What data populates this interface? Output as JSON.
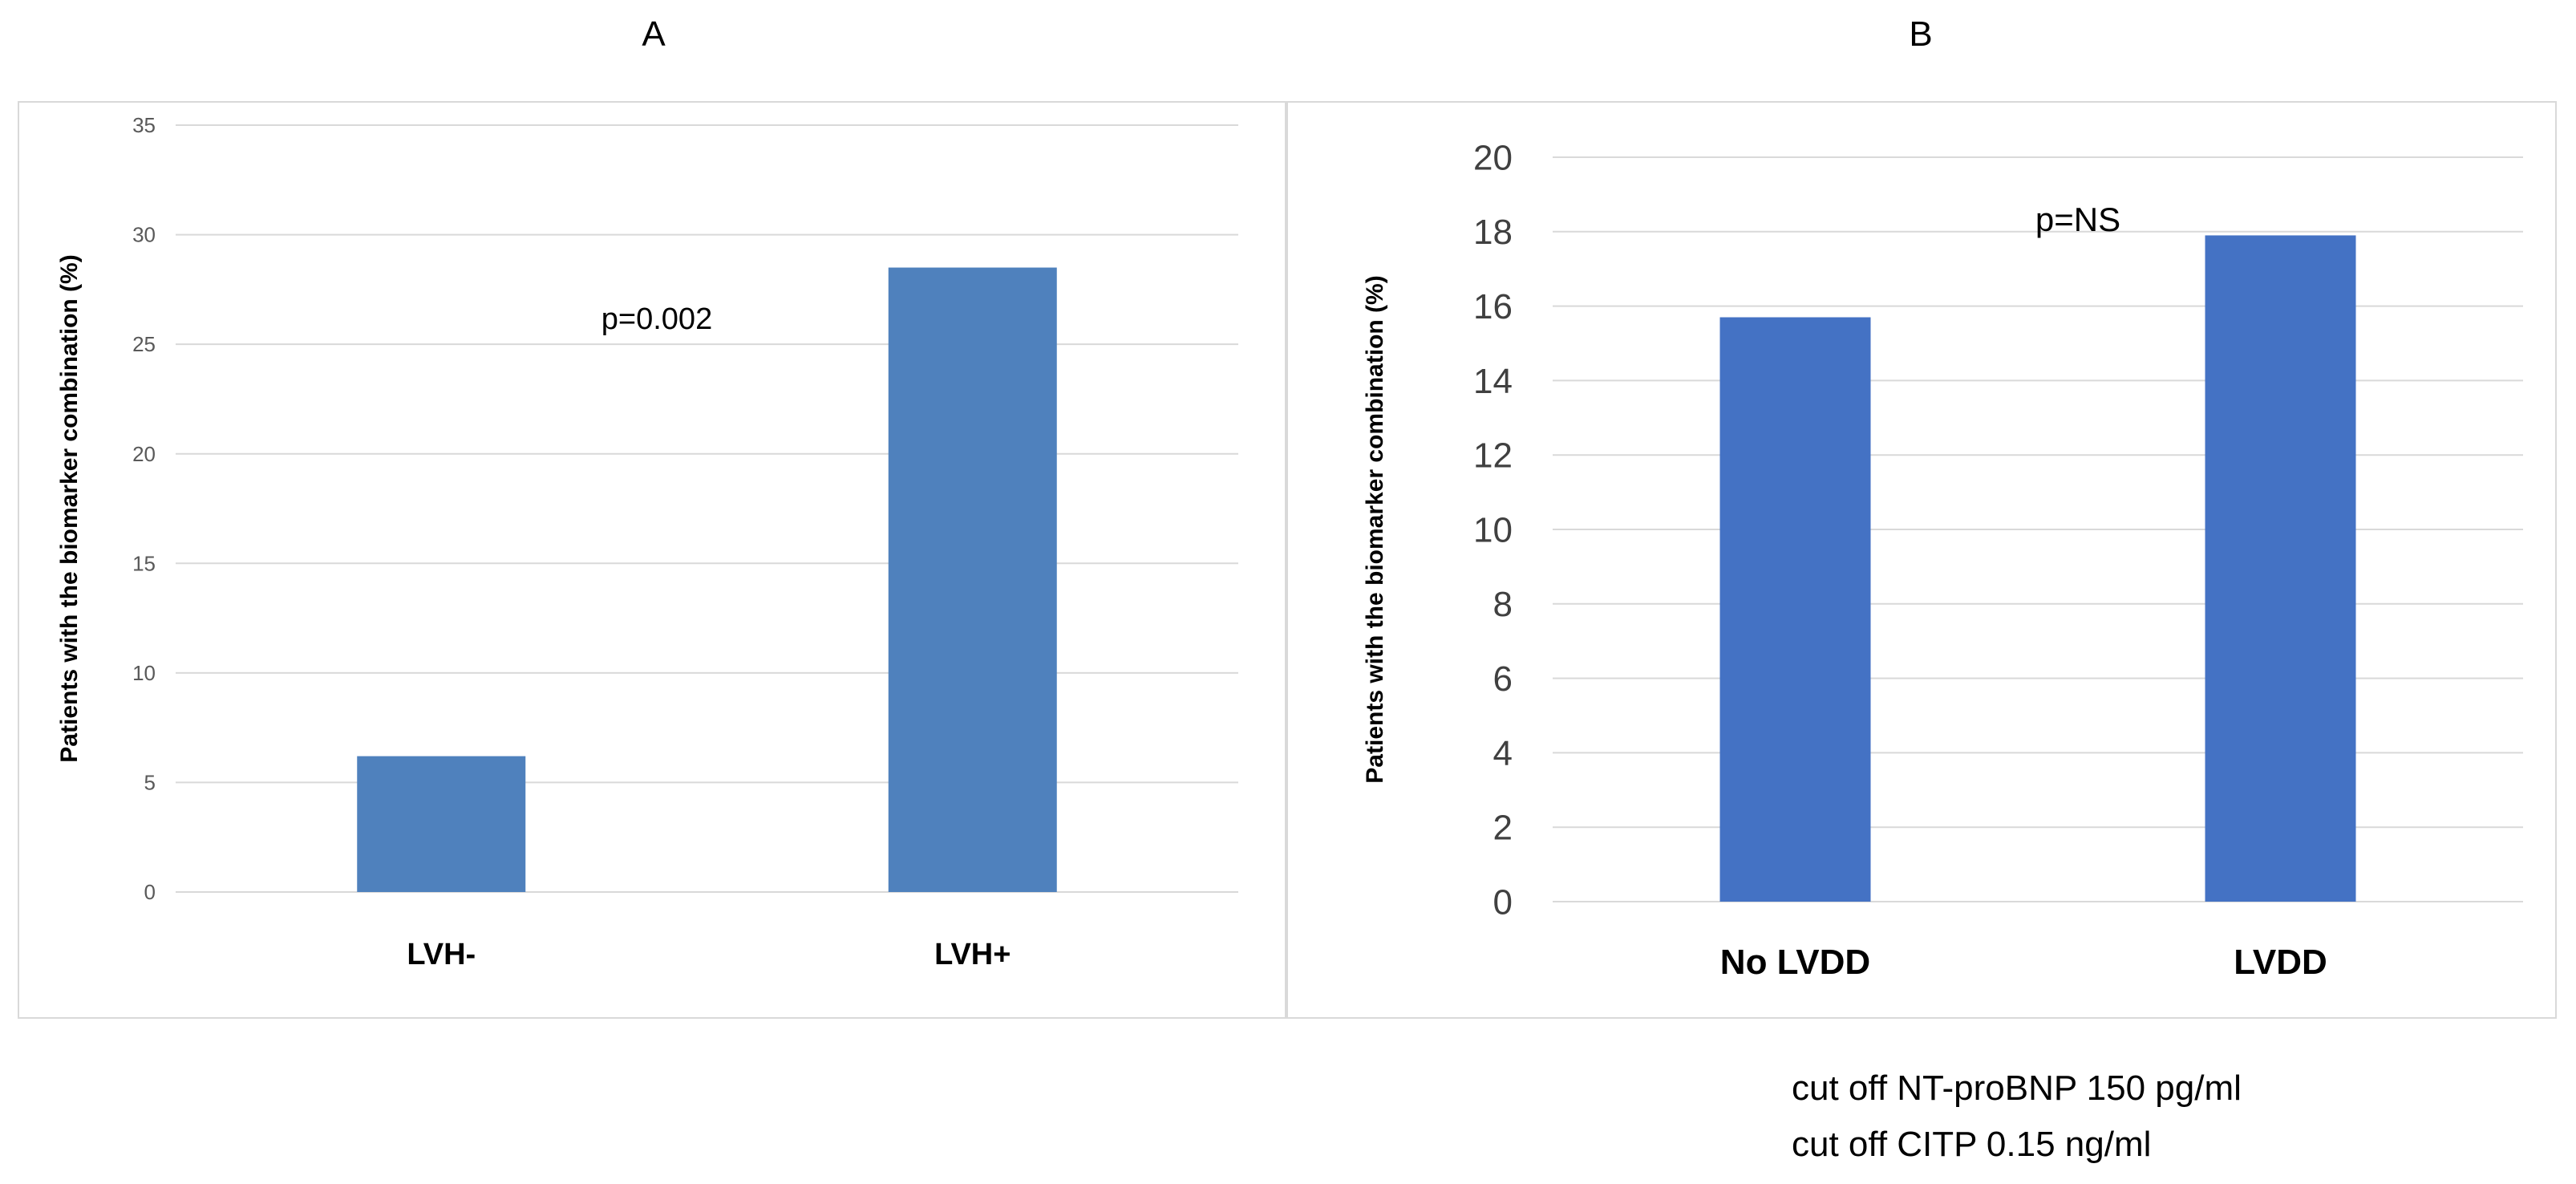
{
  "panels": {
    "a_label": "A",
    "b_label": "B"
  },
  "chart_data": [
    {
      "type": "bar",
      "panel": "A",
      "categories": [
        "LVH-",
        "LVH+"
      ],
      "values": [
        6.2,
        28.5
      ],
      "ylabel": "Patients with the biomarker combination (%)",
      "xlabel": "",
      "ylim": [
        0,
        35
      ],
      "yticks": [
        0,
        5,
        10,
        15,
        20,
        25,
        30,
        35
      ],
      "annotation": "p=0.002",
      "grid": true,
      "bar_color": "#4f81bd"
    },
    {
      "type": "bar",
      "panel": "B",
      "categories": [
        "No LVDD",
        "LVDD"
      ],
      "values": [
        15.7,
        17.9
      ],
      "ylabel": "Patients with the biomarker combination (%)",
      "xlabel": "",
      "ylim": [
        0,
        20
      ],
      "yticks": [
        0,
        2,
        4,
        6,
        8,
        10,
        12,
        14,
        16,
        18,
        20
      ],
      "annotation": "p=NS",
      "grid": true,
      "bar_color": "#4472c4"
    }
  ],
  "notes": {
    "line1": "cut off NT-proBNP 150 pg/ml",
    "line2": "cut off CITP 0.15 ng/ml"
  }
}
